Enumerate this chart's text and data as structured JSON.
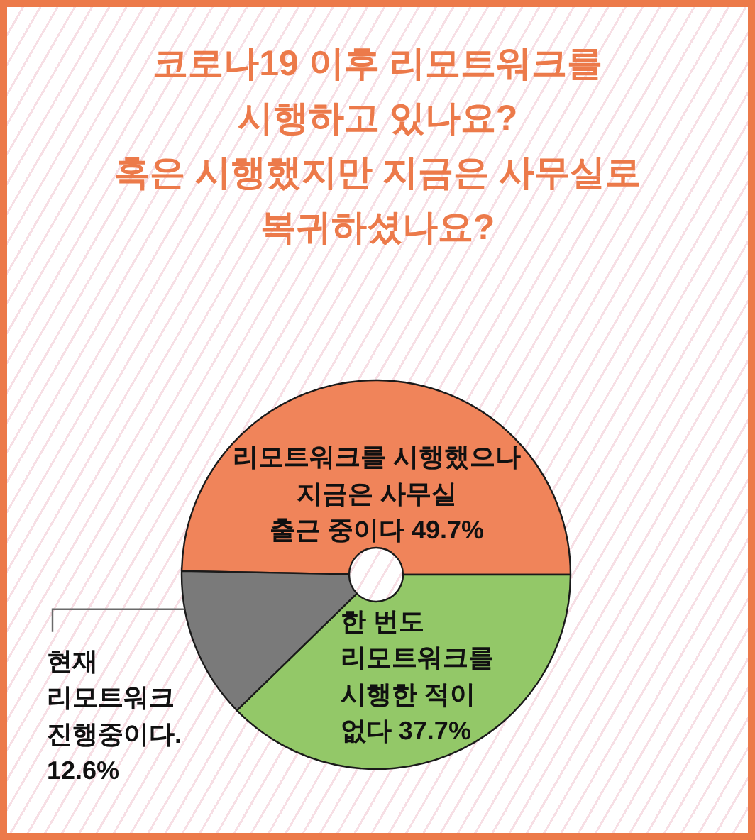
{
  "chart_data": {
    "type": "donut",
    "title": "코로나19 이후 리모트워크를\n시행하고 있나요?\n혹은 시행했지만 지금은 사무실로\n복귀하셨나요?",
    "categories": [
      "리모트워크를 시행했으나\n지금은 사무실\n출근 중이다",
      "한 번도\n리모트워크를\n시행한 적이\n없다",
      "현재\n리모트워크\n진행중이다."
    ],
    "values": [
      49.7,
      37.7,
      12.6
    ],
    "value_labels": [
      "49.7%",
      "37.7%",
      "12.6%"
    ],
    "colors": [
      "#f0845a",
      "#93c868",
      "#7a7a7a"
    ]
  }
}
